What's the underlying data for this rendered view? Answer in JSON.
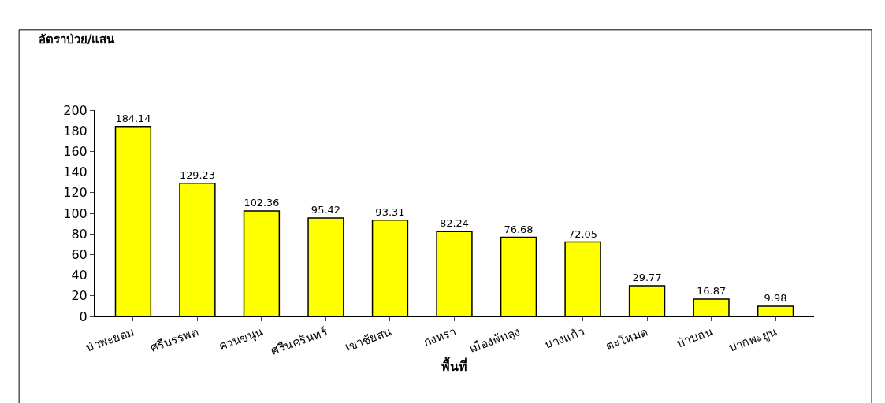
{
  "chart_data": {
    "type": "bar",
    "categories": [
      "ป่าพะยอม",
      "ศรีบรรพต",
      "ควนขนุน",
      "ศรีนครินทร์",
      "เขาชัยสน",
      "กงหรา",
      "เมืองพัทลุง",
      "บางแก้ว",
      "ตะโหมด",
      "ป่าบอน",
      "ปากพะยูน"
    ],
    "values": [
      184.14,
      129.23,
      102.36,
      95.42,
      93.31,
      82.24,
      76.68,
      72.05,
      29.77,
      16.87,
      9.98
    ],
    "color": "#ffff00",
    "ylabel": "อัตราป่วย/แสน",
    "xlabel": "พื้นที่",
    "ylim": [
      0,
      200
    ],
    "yticks": [
      0,
      20,
      40,
      60,
      80,
      100,
      120,
      140,
      160,
      180,
      200
    ],
    "data_labels": true
  }
}
